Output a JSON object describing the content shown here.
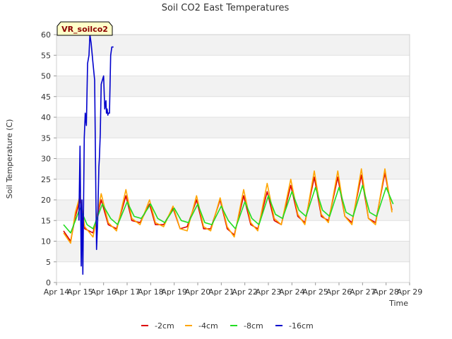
{
  "chart_data": {
    "type": "line",
    "title": "Soil CO2 East Temperatures",
    "xlabel": "Time",
    "ylabel": "Soil Temperature (C)",
    "station_label": "VR_soilco2",
    "ylim": [
      0,
      60
    ],
    "yticks": [
      0,
      5,
      10,
      15,
      20,
      25,
      30,
      35,
      40,
      45,
      50,
      55,
      60
    ],
    "xlim": [
      14,
      29
    ],
    "xticks": [
      {
        "value": 14,
        "label": "Apr 14"
      },
      {
        "value": 15,
        "label": "Apr 15"
      },
      {
        "value": 16,
        "label": "Apr 16"
      },
      {
        "value": 17,
        "label": "Apr 17"
      },
      {
        "value": 18,
        "label": "Apr 18"
      },
      {
        "value": 19,
        "label": "Apr 19"
      },
      {
        "value": 20,
        "label": "Apr 20"
      },
      {
        "value": 21,
        "label": "Apr 21"
      },
      {
        "value": 22,
        "label": "Apr 22"
      },
      {
        "value": 23,
        "label": "Apr 23"
      },
      {
        "value": 24,
        "label": "Apr 24"
      },
      {
        "value": 25,
        "label": "Apr 25"
      },
      {
        "value": 26,
        "label": "Apr 26"
      },
      {
        "value": 27,
        "label": "Apr 27"
      },
      {
        "value": 28,
        "label": "Apr 28"
      },
      {
        "value": 29,
        "label": "Apr 29"
      }
    ],
    "grid": "horizontal-bands",
    "legend_position": "bottom",
    "series": [
      {
        "name": "-2cm",
        "color": "#dd0000",
        "x": [
          14.3,
          14.6,
          14.8,
          15.0,
          15.2,
          15.55,
          15.9,
          16.2,
          16.55,
          16.95,
          17.2,
          17.55,
          17.95,
          18.2,
          18.55,
          18.95,
          19.25,
          19.55,
          19.95,
          20.25,
          20.55,
          20.95,
          21.25,
          21.55,
          21.95,
          22.25,
          22.55,
          22.95,
          23.25,
          23.55,
          23.95,
          24.25,
          24.55,
          24.95,
          25.25,
          25.55,
          25.95,
          26.25,
          26.55,
          26.95,
          27.25,
          27.55,
          27.95,
          28.25
        ],
        "y": [
          12.5,
          10,
          16,
          20,
          13,
          12,
          20,
          14,
          13,
          21,
          15,
          14.5,
          19,
          14,
          14,
          18,
          13,
          13.5,
          20,
          13,
          13,
          20,
          13,
          11.5,
          21,
          14,
          13,
          22,
          15,
          14,
          23.5,
          16,
          14.5,
          25.5,
          16,
          15,
          25.5,
          16,
          14.5,
          26,
          15.5,
          14.5,
          26.5,
          17.5
        ]
      },
      {
        "name": "-4cm",
        "color": "#ffa500",
        "x": [
          14.3,
          14.6,
          14.8,
          15.0,
          15.2,
          15.55,
          15.9,
          16.2,
          16.55,
          16.95,
          17.2,
          17.55,
          17.95,
          18.2,
          18.55,
          18.95,
          19.25,
          19.55,
          19.95,
          20.25,
          20.55,
          20.95,
          21.25,
          21.55,
          21.95,
          22.25,
          22.55,
          22.95,
          23.25,
          23.55,
          23.95,
          24.25,
          24.55,
          24.95,
          25.25,
          25.55,
          25.95,
          26.25,
          26.55,
          26.95,
          27.25,
          27.55,
          27.95,
          28.25
        ],
        "y": [
          12,
          9.5,
          17,
          21,
          13.5,
          11,
          21.5,
          14.5,
          12.5,
          22.5,
          15.5,
          14,
          20,
          14.5,
          13.5,
          18.5,
          13,
          12.5,
          21,
          13.5,
          12.5,
          20.5,
          13.5,
          11,
          22.5,
          14.5,
          12.5,
          24,
          15.5,
          14,
          25,
          16.5,
          14,
          27,
          16.5,
          14.5,
          27,
          16,
          14,
          27.5,
          15.5,
          14,
          27.5,
          17
        ]
      },
      {
        "name": "-8cm",
        "color": "#22dd22",
        "x": [
          14.3,
          14.6,
          14.8,
          15.0,
          15.3,
          15.55,
          15.95,
          16.3,
          16.6,
          17.0,
          17.3,
          17.6,
          18.0,
          18.3,
          18.6,
          19.0,
          19.3,
          19.6,
          20.0,
          20.3,
          20.6,
          21.0,
          21.3,
          21.6,
          22.0,
          22.3,
          22.6,
          23.0,
          23.3,
          23.6,
          24.0,
          24.3,
          24.6,
          25.0,
          25.3,
          25.6,
          26.0,
          26.3,
          26.6,
          27.0,
          27.3,
          27.6,
          28.0,
          28.3
        ],
        "y": [
          14,
          12,
          15,
          18,
          14,
          13,
          19,
          15.5,
          14,
          19.5,
          16,
          15.5,
          19,
          15.5,
          14.5,
          18,
          15,
          14.5,
          19,
          14.5,
          14,
          18.5,
          15,
          13,
          19.5,
          15.5,
          14,
          21,
          16.5,
          15.5,
          22,
          17.5,
          16,
          23,
          17.5,
          16,
          23,
          17,
          16,
          23.5,
          17,
          16,
          23,
          19
        ]
      },
      {
        "name": "-16cm",
        "color": "#0000cc",
        "x": [
          14.95,
          15.0,
          15.05,
          15.08,
          15.12,
          15.18,
          15.22,
          15.27,
          15.32,
          15.38,
          15.42,
          15.47,
          15.55,
          15.62,
          15.67,
          15.7,
          15.75,
          15.8,
          15.82,
          15.86,
          15.9,
          15.95,
          16.0,
          16.05,
          16.1,
          16.12,
          16.15,
          16.18,
          16.2,
          16.25,
          16.3,
          16.35,
          16.38,
          16.42
        ],
        "y": [
          15,
          33,
          4,
          20,
          2,
          35,
          41,
          38,
          53,
          55,
          60,
          58,
          53,
          49,
          22,
          8,
          15,
          28,
          30,
          36,
          48,
          49,
          50,
          42,
          44,
          41,
          42,
          40.5,
          41,
          41,
          55,
          57,
          57,
          57
        ]
      }
    ]
  }
}
